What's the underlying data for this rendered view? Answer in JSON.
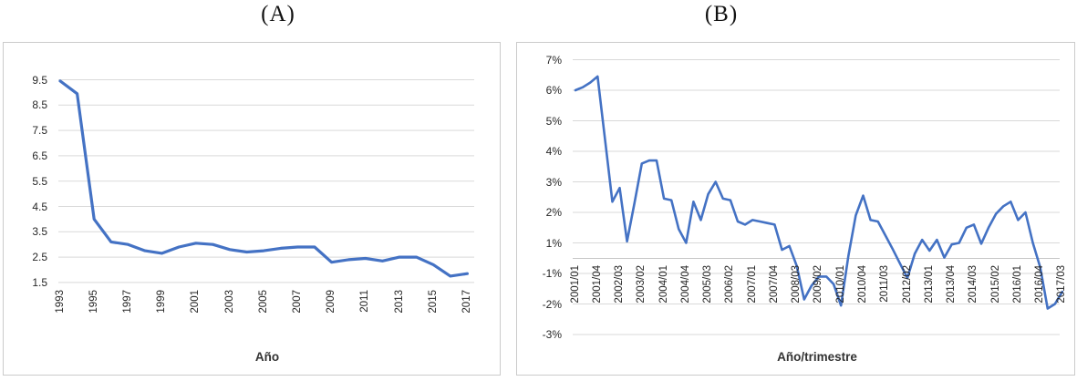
{
  "figure": {
    "panel_a_title": "(A)",
    "panel_b_title": "(B)",
    "line_color": "#4472C4",
    "gridline_color": "#d9d9d9",
    "zero_axis_color": "#c6c6c6"
  },
  "chart_data": [
    {
      "id": "A",
      "type": "line",
      "title": "(A)",
      "xlabel": "Año",
      "ylabel": "",
      "categories": [
        "1993",
        "1994",
        "1995",
        "1996",
        "1997",
        "1998",
        "1999",
        "2000",
        "2001",
        "2002",
        "2003",
        "2004",
        "2005",
        "2006",
        "2007",
        "2008",
        "2009",
        "2010",
        "2011",
        "2012",
        "2013",
        "2014",
        "2015",
        "2016",
        "2017"
      ],
      "values": [
        9.45,
        8.95,
        4.0,
        3.1,
        3.0,
        2.75,
        2.65,
        2.9,
        3.05,
        3.0,
        2.8,
        2.7,
        2.75,
        2.85,
        2.9,
        2.9,
        2.3,
        2.4,
        2.45,
        2.35,
        2.5,
        2.5,
        2.2,
        1.75,
        1.85
      ],
      "y_tick_labels": [
        "9.5",
        "8.5",
        "7.5",
        "6.5",
        "5.5",
        "4.5",
        "3.5",
        "2.5",
        "1.5"
      ],
      "y_tick_values": [
        9.5,
        8.5,
        7.5,
        6.5,
        5.5,
        4.5,
        3.5,
        2.5,
        1.5
      ],
      "x_tick_labels": [
        "1993",
        "1995",
        "1997",
        "1999",
        "2001",
        "2003",
        "2005",
        "2007",
        "2009",
        "2011",
        "2013",
        "2015",
        "2017"
      ],
      "x_tick_every": 2,
      "ylim": [
        1.5,
        9.5
      ],
      "grid": true,
      "legend": "none"
    },
    {
      "id": "B",
      "type": "line",
      "title": "(B)",
      "xlabel": "Año/trimestre",
      "ylabel": "",
      "categories": [
        "2001/01",
        "2001/02",
        "2001/03",
        "2001/04",
        "2002/01",
        "2002/02",
        "2002/03",
        "2002/04",
        "2003/01",
        "2003/02",
        "2003/03",
        "2003/04",
        "2004/01",
        "2004/02",
        "2004/03",
        "2004/04",
        "2005/01",
        "2005/02",
        "2005/03",
        "2005/04",
        "2006/01",
        "2006/02",
        "2006/03",
        "2006/04",
        "2007/01",
        "2007/02",
        "2007/03",
        "2007/04",
        "2008/01",
        "2008/02",
        "2008/03",
        "2008/04",
        "2009/01",
        "2009/02",
        "2009/03",
        "2009/04",
        "2010/01",
        "2010/02",
        "2010/03",
        "2010/04",
        "2011/01",
        "2011/02",
        "2011/03",
        "2011/04",
        "2012/01",
        "2012/02",
        "2012/03",
        "2012/04",
        "2013/01",
        "2013/02",
        "2013/03",
        "2013/04",
        "2014/01",
        "2014/02",
        "2014/03",
        "2014/04",
        "2015/01",
        "2015/02",
        "2015/03",
        "2015/04",
        "2016/01",
        "2016/02",
        "2016/03",
        "2016/04",
        "2017/01",
        "2017/02",
        "2017/03"
      ],
      "values": [
        6.0,
        6.1,
        6.25,
        6.45,
        4.4,
        2.35,
        2.8,
        1.05,
        2.3,
        3.6,
        3.7,
        3.7,
        2.45,
        2.4,
        1.45,
        1.0,
        2.35,
        1.75,
        2.6,
        3.0,
        2.45,
        2.4,
        1.7,
        1.6,
        1.75,
        1.7,
        1.65,
        1.6,
        0.55,
        0.8,
        -0.5,
        -1.85,
        -1.4,
        -1.1,
        -1.1,
        -1.35,
        -2.05,
        0.15,
        1.9,
        2.55,
        1.75,
        1.7,
        1.25,
        0.6,
        -0.35,
        -1.15,
        0.3,
        1.1,
        0.5,
        1.1,
        0.05,
        0.9,
        1.0,
        1.5,
        1.6,
        0.95,
        1.5,
        1.95,
        2.2,
        2.35,
        1.75,
        2.0,
        1.0,
        -0.6,
        -2.15,
        -2.0,
        -1.6
      ],
      "unit": "%",
      "y_tick_labels": [
        "7%",
        "6%",
        "5%",
        "4%",
        "3%",
        "2%",
        "1%",
        "-1%",
        "-2%",
        "-3%"
      ],
      "y_tick_values": [
        7,
        6,
        5,
        4,
        3,
        2,
        1,
        -1,
        -2,
        -3
      ],
      "x_tick_labels": [
        "2001/01",
        "2001/04",
        "2002/03",
        "2003/02",
        "2004/01",
        "2004/04",
        "2005/03",
        "2006/02",
        "2007/01",
        "2007/04",
        "2008/03",
        "2009/02",
        "2010/01",
        "2010/04",
        "2011/03",
        "2012/02",
        "2013/01",
        "2013/04",
        "2014/03",
        "2015/02",
        "2016/01",
        "2016/04",
        "2017/03"
      ],
      "x_tick_every": 3,
      "ylim": [
        -3,
        7
      ],
      "grid": true,
      "legend": "none",
      "axis_note": "no 0% label; category labels hang from the zero axis inside the plot"
    }
  ]
}
